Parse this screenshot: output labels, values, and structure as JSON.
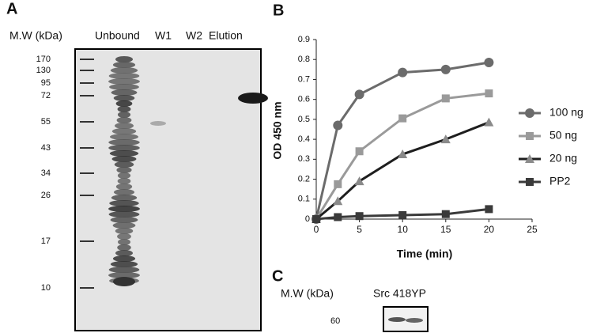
{
  "panel_a": {
    "label": "A",
    "mw_header": "M.W (kDa)",
    "lanes": [
      "Unbound",
      "W1",
      "W2",
      "Elution"
    ],
    "markers": [
      "170",
      "130",
      "95",
      "72",
      "55",
      "43",
      "34",
      "26",
      "17",
      "10"
    ]
  },
  "chart_data": {
    "type": "line",
    "panel_label": "B",
    "xlabel": "Time (min)",
    "ylabel": "OD 450 nm",
    "x": [
      0,
      2.5,
      5,
      10,
      15,
      20
    ],
    "series": [
      {
        "name": "100 ng",
        "color": "#6b6b6b",
        "marker": "circle",
        "values": [
          0,
          0.47,
          0.625,
          0.735,
          0.75,
          0.785
        ]
      },
      {
        "name": "50 ng",
        "color": "#9a9a9a",
        "marker": "square",
        "values": [
          0,
          0.175,
          0.34,
          0.505,
          0.605,
          0.63
        ]
      },
      {
        "name": "20 ng",
        "color": "#1e1e1e",
        "marker": "triangle",
        "values": [
          0,
          0.09,
          0.19,
          0.325,
          0.4,
          0.485
        ]
      },
      {
        "name": "PP2",
        "color": "#3a3a3a",
        "marker": "square",
        "values": [
          0,
          0.01,
          0.015,
          0.02,
          0.025,
          0.05
        ]
      }
    ],
    "xlim": [
      0,
      25
    ],
    "xticks": [
      0,
      5,
      10,
      15,
      20,
      25
    ],
    "ylim": [
      0,
      0.9
    ],
    "yticks": [
      0,
      0.1,
      0.2,
      0.3,
      0.4,
      0.5,
      0.6,
      0.7,
      0.8,
      0.9
    ]
  },
  "panel_c": {
    "label": "C",
    "mw_header": "M.W (kDa)",
    "lane": "Src 418YP",
    "marker": "60"
  }
}
